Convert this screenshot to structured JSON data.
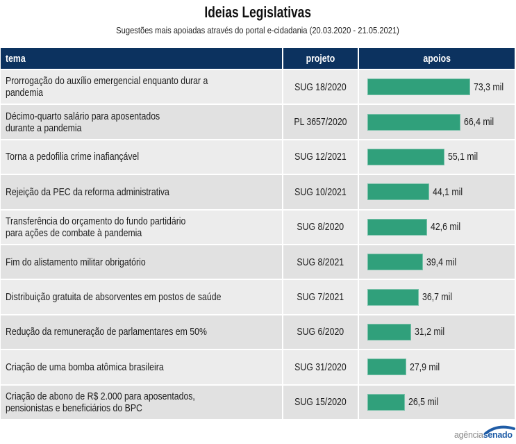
{
  "chart_data": {
    "type": "bar",
    "title": "Ideias Legislativas",
    "subtitle": "Sugestões mais apoiadas através do portal e-cidadania (20.03.2020 - 21.05.2021)",
    "columns": {
      "tema": "tema",
      "projeto": "projeto",
      "apoios": "apoios"
    },
    "unit": "mil",
    "categories": [
      "SUG 18/2020",
      "PL 3657/2020",
      "SUG 12/2021",
      "SUG 10/2021",
      "SUG 8/2020",
      "SUG 8/2021",
      "SUG 7/2021",
      "SUG 6/2020",
      "SUG 31/2020",
      "SUG 15/2020"
    ],
    "values": [
      73.3,
      66.4,
      55.1,
      44.1,
      42.6,
      39.4,
      36.7,
      31.2,
      27.9,
      26.5
    ],
    "xlabel": "",
    "ylabel": "",
    "grid": false,
    "rows": [
      {
        "tema": [
          "Prorrogação do auxílio emergencial enquanto durar a",
          "pandemia"
        ],
        "projeto": "SUG 18/2020",
        "apoios": 73.3,
        "label": "73,3 mil"
      },
      {
        "tema": [
          "Décimo-quarto salário para aposentados",
          "durante a pandemia"
        ],
        "projeto": "PL 3657/2020",
        "apoios": 66.4,
        "label": "66,4 mil"
      },
      {
        "tema": [
          "Torna a pedofilia crime inafiançável"
        ],
        "projeto": "SUG 12/2021",
        "apoios": 55.1,
        "label": "55,1 mil"
      },
      {
        "tema": [
          "Rejeição da PEC da reforma administrativa"
        ],
        "projeto": "SUG 10/2021",
        "apoios": 44.1,
        "label": "44,1 mil"
      },
      {
        "tema": [
          "Transferência do orçamento do fundo partidário",
          "para ações de combate à pandemia"
        ],
        "projeto": "SUG 8/2020",
        "apoios": 42.6,
        "label": "42,6 mil"
      },
      {
        "tema": [
          "Fim do alistamento militar obrigatório"
        ],
        "projeto": "SUG 8/2021",
        "apoios": 39.4,
        "label": "39,4 mil"
      },
      {
        "tema": [
          "Distribuição gratuita de absorventes em postos de saúde"
        ],
        "projeto": "SUG 7/2021",
        "apoios": 36.7,
        "label": "36,7 mil"
      },
      {
        "tema": [
          "Redução da remuneração de parlamentares em 50%"
        ],
        "projeto": "SUG 6/2020",
        "apoios": 31.2,
        "label": "31,2 mil"
      },
      {
        "tema": [
          "Criação de uma bomba atômica brasileira"
        ],
        "projeto": "SUG 31/2020",
        "apoios": 27.9,
        "label": "27,9 mil"
      },
      {
        "tema": [
          "Criação de abono de R$ 2.000 para aposentados,",
          "pensionistas e beneficiários do BPC"
        ],
        "projeto": "SUG 15/2020",
        "apoios": 26.5,
        "label": "26,5 mil"
      }
    ]
  },
  "colors": {
    "header_bg": "#0c325f",
    "header_text": "#ffffff",
    "row_odd": "#ececec",
    "row_even": "#e1e1e1",
    "bar": "#30a07b",
    "logo_gray": "#8a8a8a",
    "logo_blue": "#1f5ca6"
  },
  "footer": {
    "logo_prefix": "agência",
    "logo_brand": "senado"
  }
}
